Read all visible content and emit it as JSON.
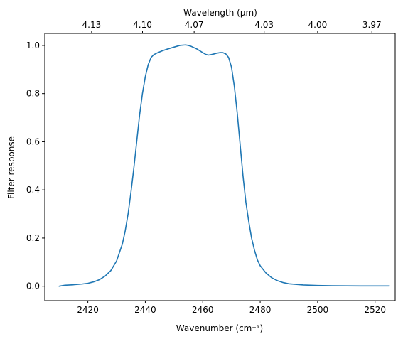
{
  "chart_data": {
    "type": "line",
    "title": "",
    "xlabel": "Wavenumber (cm⁻¹)",
    "ylabel": "Filter response",
    "x2label": "Wavelength (μm)",
    "xlim": [
      2405,
      2527
    ],
    "ylim": [
      -0.06,
      1.05
    ],
    "x_ticks": [
      2420,
      2440,
      2460,
      2480,
      2500,
      2520
    ],
    "x_tick_labels": [
      "2420",
      "2440",
      "2460",
      "2480",
      "2500",
      "2520"
    ],
    "y_ticks": [
      0.0,
      0.2,
      0.4,
      0.6,
      0.8,
      1.0
    ],
    "y_tick_labels": [
      "0.0",
      "0.2",
      "0.4",
      "0.6",
      "0.8",
      "1.0"
    ],
    "x2_ticks": [
      {
        "label": "4.13",
        "wavelength": 4.13
      },
      {
        "label": "4.10",
        "wavelength": 4.1
      },
      {
        "label": "4.07",
        "wavelength": 4.07
      },
      {
        "label": "4.03",
        "wavelength": 4.03
      },
      {
        "label": "4.00",
        "wavelength": 4.0
      },
      {
        "label": "3.97",
        "wavelength": 3.97
      }
    ],
    "grid": false,
    "legend": "none",
    "series": [
      {
        "color": "#1f77b4",
        "x": [
          2410,
          2412,
          2415,
          2418,
          2420,
          2422,
          2424,
          2426,
          2428,
          2430,
          2432,
          2433,
          2434,
          2435,
          2436,
          2437,
          2438,
          2439,
          2440,
          2441,
          2442,
          2443,
          2444,
          2446,
          2448,
          2450,
          2452,
          2454,
          2455,
          2456,
          2458,
          2460,
          2461,
          2462,
          2463,
          2464,
          2465,
          2466,
          2467,
          2468,
          2469,
          2470,
          2471,
          2472,
          2473,
          2474,
          2475,
          2476,
          2477,
          2478,
          2479,
          2480,
          2482,
          2484,
          2486,
          2488,
          2490,
          2495,
          2500,
          2505,
          2510,
          2515,
          2520,
          2525
        ],
        "y": [
          0.0,
          0.004,
          0.006,
          0.009,
          0.012,
          0.018,
          0.027,
          0.042,
          0.065,
          0.105,
          0.175,
          0.23,
          0.3,
          0.39,
          0.49,
          0.6,
          0.71,
          0.8,
          0.87,
          0.92,
          0.95,
          0.962,
          0.968,
          0.978,
          0.986,
          0.993,
          1.0,
          1.002,
          1.0,
          0.996,
          0.985,
          0.97,
          0.963,
          0.96,
          0.962,
          0.965,
          0.968,
          0.97,
          0.97,
          0.965,
          0.95,
          0.91,
          0.83,
          0.72,
          0.59,
          0.46,
          0.35,
          0.27,
          0.2,
          0.15,
          0.11,
          0.085,
          0.055,
          0.035,
          0.023,
          0.015,
          0.01,
          0.005,
          0.003,
          0.002,
          0.0015,
          0.001,
          0.001,
          0.001
        ]
      }
    ]
  }
}
